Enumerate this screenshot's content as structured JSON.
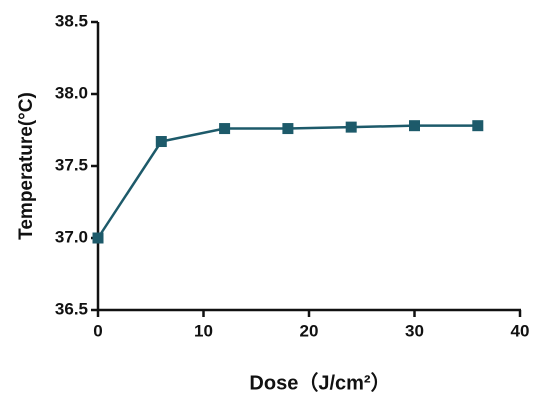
{
  "chart_data": {
    "type": "line",
    "x_label": "Dose（J/cm²）",
    "y_label": "Temperature(°C)",
    "x": [
      0,
      6,
      12,
      18,
      24,
      30,
      36
    ],
    "series": [
      {
        "name": "Temperature",
        "color": "#1d5a6a",
        "values": [
          37.0,
          37.67,
          37.76,
          37.76,
          37.77,
          37.78,
          37.78
        ]
      }
    ],
    "xlim": [
      0,
      40
    ],
    "xticks": [
      0,
      10,
      20,
      30,
      40
    ],
    "ylim": [
      36.5,
      38.5
    ],
    "yticks": [
      {
        "value": 36.5,
        "label": "36.5"
      },
      {
        "value": 37.0,
        "label": "37.0"
      },
      {
        "value": 37.5,
        "label": "37.5"
      },
      {
        "value": 38.0,
        "label": "38.0"
      },
      {
        "value": 38.5,
        "label": "38.5"
      }
    ],
    "grid": false,
    "marker": "square"
  }
}
